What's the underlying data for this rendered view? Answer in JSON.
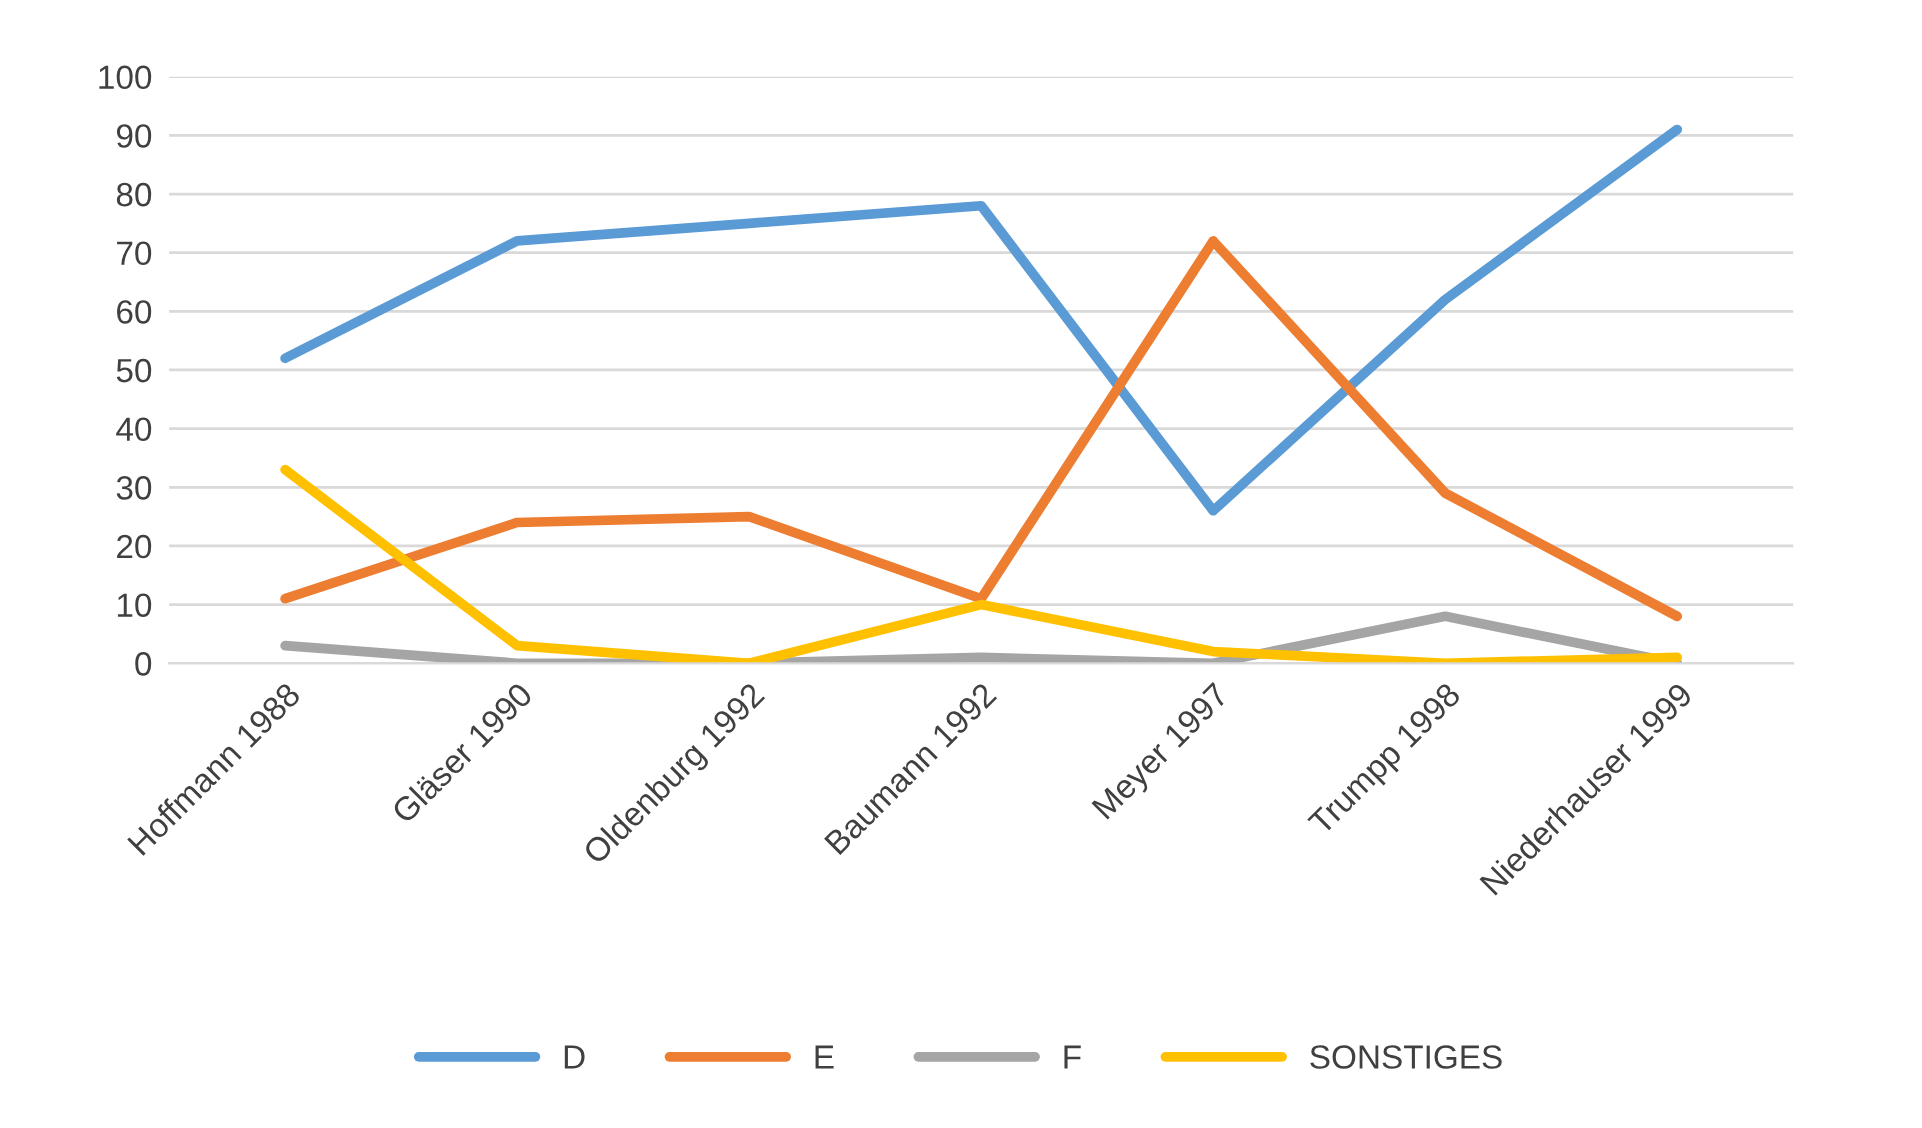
{
  "chart_data": {
    "type": "line",
    "categories": [
      "Hoffmann 1988",
      "Gläser 1990",
      "Oldenburg 1992",
      "Baumann 1992",
      "Meyer 1997",
      "Trumpp 1998",
      "Niederhauser 1999"
    ],
    "series": [
      {
        "name": "D",
        "color": "#5b9bd5",
        "values": [
          52,
          72,
          75,
          78,
          26,
          62,
          91
        ]
      },
      {
        "name": "E",
        "color": "#ed7d31",
        "values": [
          11,
          24,
          25,
          11,
          72,
          29,
          8
        ]
      },
      {
        "name": "F",
        "color": "#a5a5a5",
        "values": [
          3,
          0,
          0,
          1,
          0,
          8,
          0
        ]
      },
      {
        "name": "SONSTIGES",
        "color": "#ffc000",
        "values": [
          33,
          3,
          0,
          10,
          2,
          0,
          1
        ]
      }
    ],
    "ylim": [
      0,
      100
    ],
    "yticks": [
      0,
      10,
      20,
      30,
      40,
      50,
      60,
      70,
      80,
      90,
      100
    ],
    "grid": "y",
    "legend": "bottom",
    "marker": "none",
    "line_style": "solid"
  }
}
